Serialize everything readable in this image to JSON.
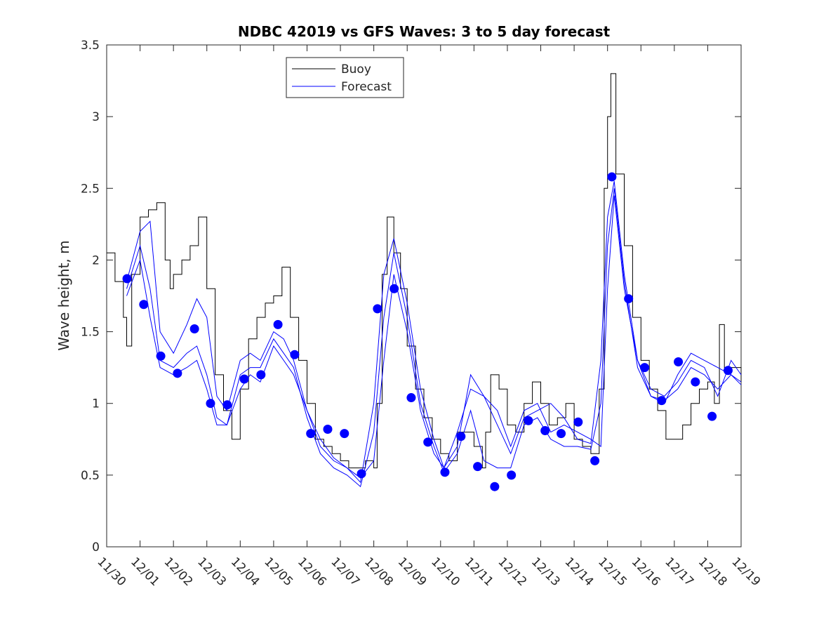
{
  "chart_data": {
    "type": "line",
    "title": "NDBC 42019 vs GFS Waves: 3 to 5 day forecast",
    "xlabel": "",
    "ylabel": "Wave height, m",
    "xlim": [
      0,
      19
    ],
    "ylim": [
      0,
      3.5
    ],
    "x_units": "days since 11/30",
    "x_tick_labels": [
      "11/30",
      "12/01",
      "12/02",
      "12/03",
      "12/04",
      "12/05",
      "12/06",
      "12/07",
      "12/08",
      "12/09",
      "12/10",
      "12/11",
      "12/12",
      "12/13",
      "12/14",
      "12/15",
      "12/16",
      "12/17",
      "12/18",
      "12/19"
    ],
    "y_ticks": [
      0,
      0.5,
      1,
      1.5,
      2,
      2.5,
      3,
      3.5
    ],
    "y_tick_labels": [
      "0",
      "0.5",
      "1",
      "1.5",
      "2",
      "2.5",
      "3",
      "3.5"
    ],
    "grid": false,
    "legend": {
      "placement": "top-center-left",
      "entries": [
        "Buoy",
        "Forecast"
      ]
    },
    "colors": {
      "buoy": "#000000",
      "forecast": "#0000ff"
    },
    "buoy": {
      "name": "Buoy",
      "x": [
        0,
        0.25,
        0.5,
        0.6,
        0.75,
        1.0,
        1.25,
        1.5,
        1.75,
        1.9,
        2.0,
        2.25,
        2.5,
        2.75,
        3.0,
        3.25,
        3.5,
        3.75,
        4.0,
        4.25,
        4.5,
        4.75,
        5.0,
        5.25,
        5.5,
        5.75,
        6.0,
        6.25,
        6.5,
        6.75,
        7.0,
        7.25,
        7.5,
        7.75,
        8.0,
        8.1,
        8.25,
        8.4,
        8.6,
        8.8,
        9.0,
        9.25,
        9.5,
        9.75,
        10.0,
        10.25,
        10.5,
        10.75,
        11.0,
        11.25,
        11.35,
        11.5,
        11.75,
        12.0,
        12.25,
        12.5,
        12.75,
        13.0,
        13.25,
        13.5,
        13.75,
        14.0,
        14.25,
        14.5,
        14.75,
        14.9,
        15.0,
        15.1,
        15.25,
        15.5,
        15.75,
        16.0,
        16.25,
        16.5,
        16.75,
        17.0,
        17.25,
        17.5,
        17.75,
        18.0,
        18.2,
        18.35,
        18.5,
        18.75,
        19.0
      ],
      "y": [
        2.05,
        1.85,
        1.6,
        1.4,
        1.9,
        2.3,
        2.35,
        2.4,
        2.0,
        1.8,
        1.9,
        2.0,
        2.1,
        2.3,
        1.8,
        1.2,
        0.95,
        0.75,
        1.1,
        1.45,
        1.6,
        1.7,
        1.75,
        1.95,
        1.6,
        1.3,
        1.0,
        0.75,
        0.7,
        0.65,
        0.6,
        0.55,
        0.55,
        0.6,
        0.55,
        1.0,
        1.9,
        2.3,
        2.05,
        1.8,
        1.4,
        1.1,
        0.9,
        0.75,
        0.65,
        0.6,
        0.8,
        0.8,
        0.7,
        0.55,
        0.8,
        1.2,
        1.1,
        0.85,
        0.8,
        1.0,
        1.15,
        1.0,
        0.85,
        0.9,
        1.0,
        0.75,
        0.7,
        0.65,
        1.1,
        2.5,
        3.0,
        3.3,
        2.6,
        2.1,
        1.6,
        1.3,
        1.1,
        0.95,
        0.75,
        0.75,
        0.85,
        1.0,
        1.1,
        1.15,
        1.0,
        1.55,
        1.25,
        1.25,
        1.15
      ]
    },
    "forecast_lines": [
      {
        "name": "Forecast",
        "x": [
          0.6,
          1.0,
          1.3,
          1.6,
          2.0,
          2.4,
          2.7,
          3.0,
          3.3,
          3.6,
          4.0,
          4.3,
          4.6,
          5.0,
          5.3,
          5.6,
          6.0,
          6.4,
          6.8,
          7.2,
          7.6,
          8.0,
          8.3,
          8.6,
          9.0,
          9.4,
          9.8,
          10.1,
          10.5,
          10.9,
          11.3,
          11.7,
          12.1,
          12.5,
          12.9,
          13.3,
          13.7,
          14.1,
          14.5,
          14.8,
          15.0,
          15.2,
          15.5,
          15.9,
          16.3,
          16.7,
          17.1,
          17.5,
          17.9,
          18.3,
          18.7,
          19.0
        ],
        "y": [
          1.85,
          2.2,
          2.27,
          1.5,
          1.35,
          1.55,
          1.73,
          1.6,
          1.05,
          0.95,
          1.3,
          1.35,
          1.3,
          1.5,
          1.45,
          1.3,
          0.95,
          0.7,
          0.6,
          0.55,
          0.45,
          1.0,
          1.9,
          2.15,
          1.7,
          1.1,
          0.75,
          0.55,
          0.7,
          1.2,
          1.05,
          0.85,
          0.65,
          0.9,
          0.95,
          1.0,
          0.9,
          0.75,
          0.72,
          1.3,
          2.3,
          2.55,
          1.9,
          1.3,
          1.05,
          1.0,
          1.2,
          1.35,
          1.3,
          1.25,
          1.2,
          1.15
        ]
      },
      {
        "name": "Forecast",
        "x": [
          0.6,
          1.0,
          1.3,
          1.6,
          2.0,
          2.4,
          2.7,
          3.0,
          3.3,
          3.6,
          4.0,
          4.3,
          4.6,
          5.0,
          5.3,
          5.6,
          6.0,
          6.4,
          6.8,
          7.2,
          7.6,
          8.0,
          8.3,
          8.6,
          9.0,
          9.4,
          9.8,
          10.1,
          10.5,
          10.9,
          11.3,
          11.7,
          12.1,
          12.5,
          12.9,
          13.3,
          13.7,
          14.1,
          14.5,
          14.8,
          15.0,
          15.2,
          15.5,
          15.9,
          16.3,
          16.7,
          17.1,
          17.5,
          17.9,
          18.3,
          18.7,
          19.0
        ],
        "y": [
          1.8,
          2.1,
          1.8,
          1.3,
          1.25,
          1.35,
          1.4,
          1.2,
          0.9,
          0.85,
          1.2,
          1.25,
          1.25,
          1.45,
          1.35,
          1.25,
          0.9,
          0.65,
          0.55,
          0.5,
          0.42,
          0.8,
          1.6,
          2.05,
          1.6,
          1.0,
          0.7,
          0.52,
          0.65,
          0.95,
          0.6,
          0.55,
          0.55,
          0.85,
          0.9,
          0.75,
          0.7,
          0.7,
          0.68,
          1.0,
          2.1,
          2.5,
          1.85,
          1.25,
          1.05,
          1.02,
          1.1,
          1.25,
          1.2,
          1.1,
          1.2,
          1.13
        ]
      },
      {
        "name": "Forecast",
        "x": [
          0.6,
          1.0,
          1.3,
          1.6,
          2.0,
          2.4,
          2.7,
          3.0,
          3.3,
          3.6,
          4.0,
          4.3,
          4.6,
          5.0,
          5.3,
          5.6,
          6.0,
          6.4,
          6.8,
          7.2,
          7.6,
          8.0,
          8.3,
          8.6,
          9.0,
          9.4,
          9.8,
          10.1,
          10.5,
          10.9,
          11.3,
          11.7,
          12.1,
          12.5,
          12.9,
          13.3,
          13.7,
          14.1,
          14.5,
          14.8,
          15.0,
          15.2,
          15.5,
          15.9,
          16.3,
          16.7,
          17.1,
          17.5,
          17.9,
          18.3,
          18.7,
          19.0
        ],
        "y": [
          1.75,
          2.0,
          1.6,
          1.25,
          1.2,
          1.25,
          1.3,
          1.1,
          0.85,
          0.85,
          1.1,
          1.2,
          1.15,
          1.4,
          1.3,
          1.2,
          0.95,
          0.75,
          0.62,
          0.55,
          0.48,
          0.6,
          1.3,
          1.9,
          1.5,
          0.95,
          0.65,
          0.55,
          0.8,
          1.1,
          1.05,
          0.95,
          0.7,
          0.95,
          1.0,
          0.8,
          0.85,
          0.8,
          0.75,
          0.7,
          1.8,
          2.45,
          1.8,
          1.3,
          1.1,
          1.05,
          1.15,
          1.3,
          1.25,
          1.05,
          1.3,
          1.2
        ]
      }
    ],
    "markers": {
      "name": "Forecast points",
      "x": [
        0.61,
        1.11,
        1.62,
        2.12,
        2.63,
        3.11,
        3.61,
        4.12,
        4.62,
        5.13,
        5.63,
        6.11,
        6.62,
        7.12,
        7.63,
        8.11,
        8.61,
        9.12,
        9.62,
        10.13,
        10.61,
        11.11,
        11.62,
        12.12,
        12.63,
        13.13,
        13.61,
        14.12,
        14.62,
        15.13,
        15.63,
        16.11,
        16.62,
        17.12,
        17.63,
        18.13,
        18.61
      ],
      "y": [
        1.87,
        1.69,
        1.33,
        1.21,
        1.52,
        1.0,
        0.99,
        1.17,
        1.2,
        1.55,
        1.34,
        0.79,
        0.82,
        0.79,
        0.51,
        1.66,
        1.8,
        1.04,
        0.73,
        0.52,
        0.77,
        0.56,
        0.42,
        0.5,
        0.88,
        0.81,
        0.79,
        0.87,
        0.6,
        2.58,
        1.73,
        1.25,
        1.02,
        1.29,
        1.15,
        0.91,
        1.23
      ]
    }
  }
}
